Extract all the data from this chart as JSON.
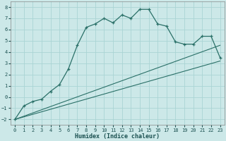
{
  "xlabel": "Humidex (Indice chaleur)",
  "background_color": "#cce8e8",
  "grid_color": "#aad4d4",
  "line_color": "#2a7068",
  "xlim": [
    -0.5,
    23.5
  ],
  "ylim": [
    -2.5,
    8.5
  ],
  "xticks": [
    0,
    1,
    2,
    3,
    4,
    5,
    6,
    7,
    8,
    9,
    10,
    11,
    12,
    13,
    14,
    15,
    16,
    17,
    18,
    19,
    20,
    21,
    22,
    23
  ],
  "yticks": [
    -2,
    -1,
    0,
    1,
    2,
    3,
    4,
    5,
    6,
    7,
    8
  ],
  "main_line_x": [
    0,
    1,
    2,
    3,
    4,
    5,
    6,
    7,
    8,
    9,
    10,
    11,
    12,
    13,
    14,
    15,
    16,
    17,
    18,
    19,
    20,
    21,
    22,
    23
  ],
  "main_line_y": [
    -2.0,
    -0.8,
    -0.4,
    -0.2,
    0.5,
    1.1,
    2.5,
    4.6,
    6.2,
    6.5,
    7.0,
    6.6,
    7.3,
    7.0,
    7.8,
    7.8,
    6.5,
    6.3,
    4.9,
    4.7,
    4.7,
    5.4,
    5.4,
    3.5
  ],
  "line2_x": [
    0,
    23
  ],
  "line2_y": [
    -2.0,
    3.2
  ],
  "line3_x": [
    0,
    23
  ],
  "line3_y": [
    -2.0,
    4.6
  ]
}
